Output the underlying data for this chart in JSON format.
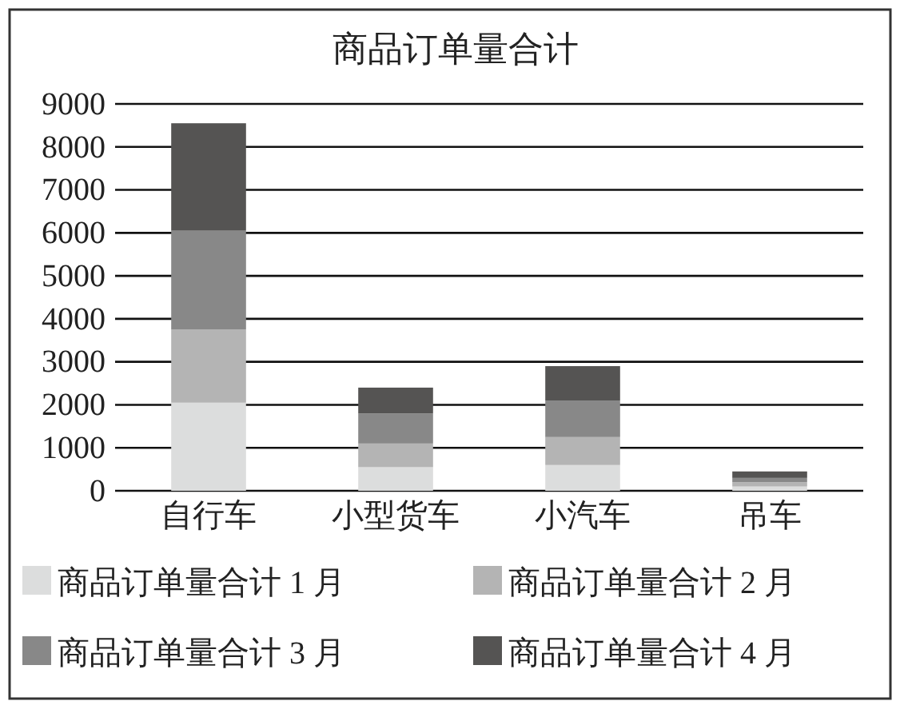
{
  "chart_data": {
    "type": "bar",
    "title": "商品订单量合计",
    "categories": [
      "自行车",
      "小型货车",
      "小汽车",
      "吊车"
    ],
    "stacked": true,
    "legend": "bottom",
    "grid": "y",
    "ylim": [
      0,
      9000
    ],
    "yticks": [
      0,
      1000,
      2000,
      3000,
      4000,
      5000,
      6000,
      7000,
      8000,
      9000
    ],
    "series": [
      {
        "name": "商品订单量合计 1 月",
        "color": "#dcdddd",
        "values": [
          2050,
          550,
          600,
          100
        ]
      },
      {
        "name": "商品订单量合计 2 月",
        "color": "#b4b4b4",
        "values": [
          1700,
          550,
          650,
          100
        ]
      },
      {
        "name": "商品订单量合计 3 月",
        "color": "#888888",
        "values": [
          2300,
          700,
          850,
          100
        ]
      },
      {
        "name": "商品订单量合计 4 月",
        "color": "#555453",
        "values": [
          2500,
          600,
          800,
          150
        ]
      }
    ]
  }
}
